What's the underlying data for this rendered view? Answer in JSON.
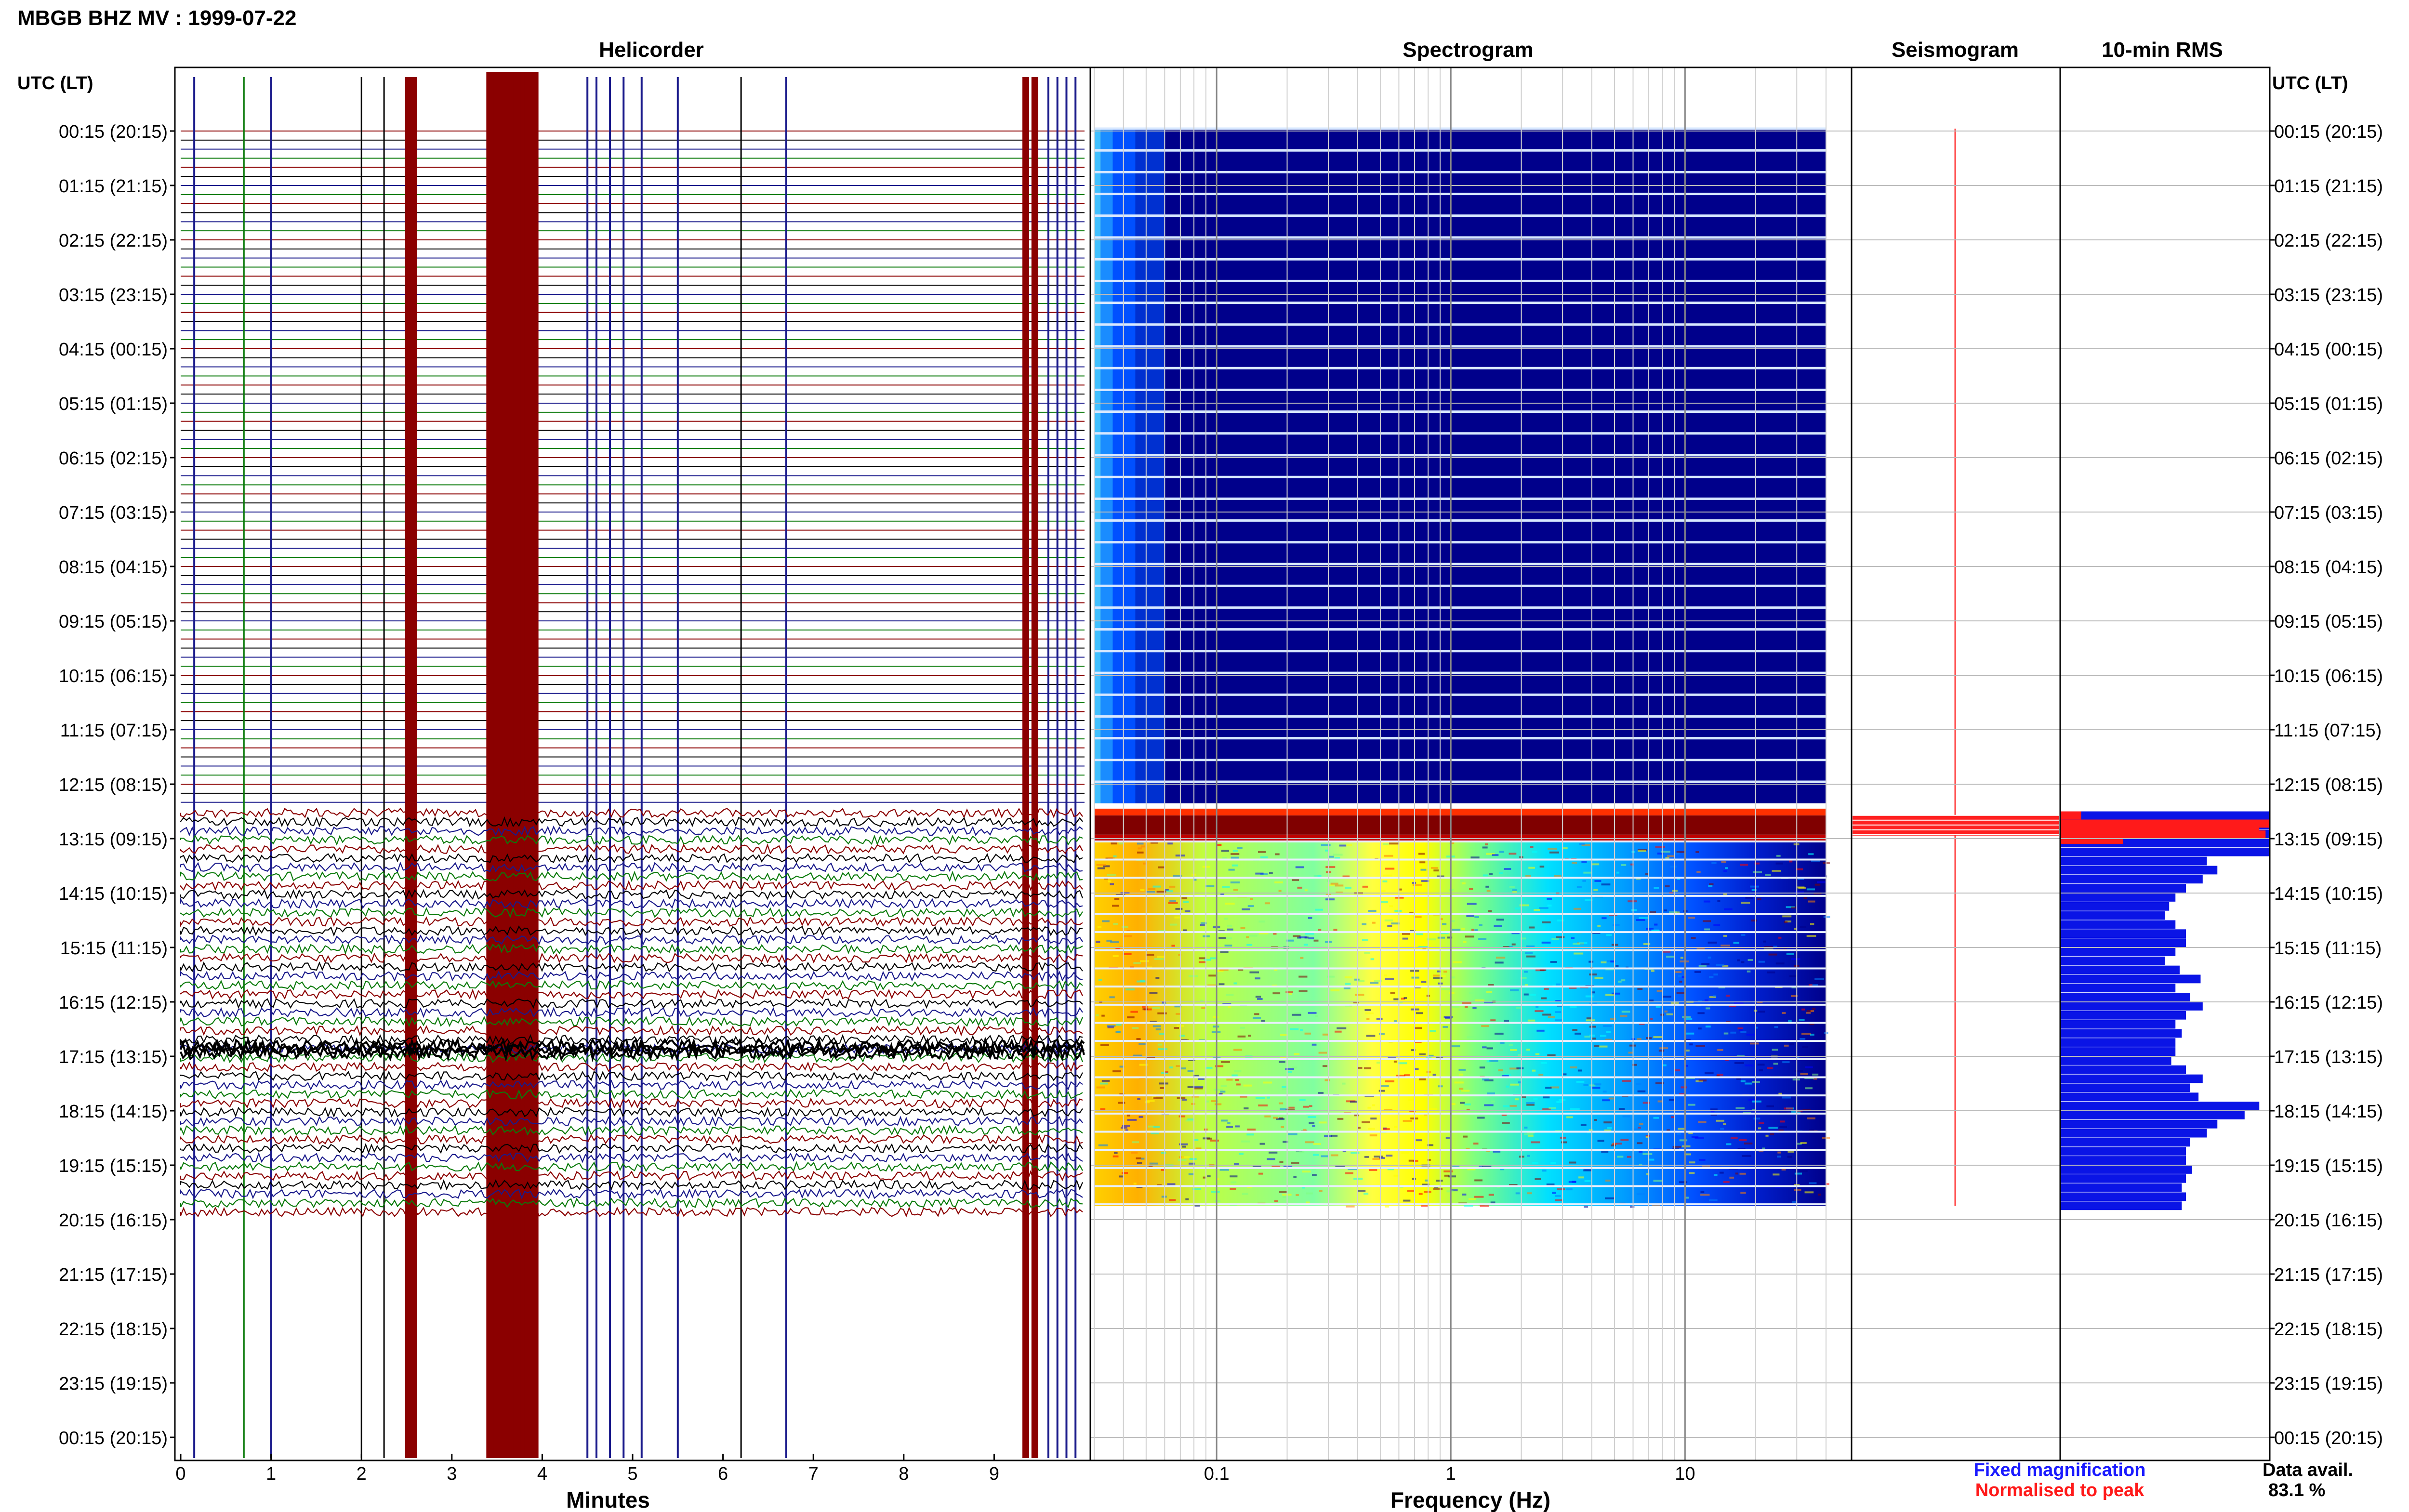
{
  "title": "MBGB BHZ MV : 1999-07-22",
  "panels": {
    "helicorder": "Helicorder",
    "spectrogram": "Spectrogram",
    "seismogram": "Seismogram",
    "rms": "10-min RMS"
  },
  "axis": {
    "left_header": "UTC (LT)",
    "right_header": "UTC (LT)",
    "x_minutes_label": "Minutes",
    "x_frequency_label": "Frequency (Hz)"
  },
  "legend": {
    "fixed": "Fixed magnification",
    "normalised": "Normalised to peak",
    "fixed_color": "#1a1aff",
    "normalised_color": "#ff1a1a"
  },
  "data_availability": {
    "label": "Data avail.",
    "value": "83.1 %"
  },
  "chart_data": [
    {
      "type": "line",
      "name": "helicorder",
      "title": "Helicorder",
      "xlabel": "Minutes",
      "xlim": [
        0,
        10
      ],
      "x_ticks": [
        "0",
        "1",
        "2",
        "3",
        "4",
        "5",
        "6",
        "7",
        "8",
        "9"
      ],
      "y_ticks_left": [
        "00:15 (20:15)",
        "01:15 (21:15)",
        "02:15 (22:15)",
        "03:15 (23:15)",
        "04:15 (00:15)",
        "05:15 (01:15)",
        "06:15 (02:15)",
        "07:15 (03:15)",
        "08:15 (04:15)",
        "09:15 (05:15)",
        "10:15 (06:15)",
        "11:15 (07:15)",
        "12:15 (08:15)",
        "13:15 (09:15)",
        "14:15 (10:15)",
        "15:15 (11:15)",
        "16:15 (12:15)",
        "17:15 (13:15)",
        "18:15 (14:15)",
        "19:15 (15:15)",
        "20:15 (16:15)",
        "21:15 (17:15)",
        "22:15 (18:15)",
        "23:15 (19:15)",
        "00:15 (20:15)"
      ],
      "trace_colors": [
        "#8b0000",
        "#000000",
        "#1a1a8b",
        "#0a7a0a"
      ],
      "data_start_hour": 12.6,
      "data_end_hour": 20.0,
      "spike_minutes_dark_red": [
        2.52,
        2.58,
        3.5,
        3.55,
        3.6,
        3.65,
        3.7,
        3.75,
        3.8,
        3.85,
        9.35,
        9.45
      ],
      "spike_minutes_blue": [
        0.15,
        1.0,
        4.5,
        4.6,
        4.75,
        4.9,
        5.1,
        5.5,
        6.7,
        9.6,
        9.7,
        9.8,
        9.9
      ]
    },
    {
      "type": "heatmap",
      "name": "spectrogram",
      "title": "Spectrogram",
      "xlabel": "Frequency (Hz)",
      "x_scale": "log",
      "xlim": [
        0.03,
        40
      ],
      "x_tick_labels": [
        "0.1",
        "1",
        "10"
      ],
      "x_tick_values": [
        0.1,
        1,
        10
      ],
      "colormap": [
        "#00008b",
        "#0000ff",
        "#0080ff",
        "#00ffff",
        "#80ff80",
        "#ffff00",
        "#ff8000",
        "#ff0000",
        "#800000"
      ],
      "quiet_until_hour": 12.6,
      "active_until_hour": 20.0,
      "peak_band_hz": [
        0.3,
        3
      ]
    },
    {
      "type": "line",
      "name": "seismogram",
      "title": "Seismogram",
      "burst_hour": 13.0
    },
    {
      "type": "bar",
      "name": "10-min RMS",
      "title": "10-min RMS",
      "orientation": "horizontal",
      "normalised_hours": [
        12.75,
        12.9,
        13.0,
        13.1,
        13.2
      ],
      "normalised_values": [
        0.1,
        1.0,
        0.95,
        0.98,
        0.3
      ],
      "fixed_start_hour": 12.75,
      "fixed_values": [
        1.0,
        1.0,
        1.0,
        1.0,
        1.0,
        0.7,
        0.75,
        0.68,
        0.6,
        0.55,
        0.52,
        0.5,
        0.55,
        0.6,
        0.6,
        0.55,
        0.5,
        0.57,
        0.67,
        0.55,
        0.62,
        0.68,
        0.6,
        0.55,
        0.58,
        0.55,
        0.55,
        0.53,
        0.6,
        0.68,
        0.62,
        0.66,
        0.95,
        0.88,
        0.75,
        0.7,
        0.62,
        0.6,
        0.6,
        0.63,
        0.6,
        0.58,
        0.6,
        0.58,
        0.6,
        0.6,
        0.62,
        0.6,
        0.65,
        0.66,
        0.6,
        0.6,
        0.62,
        0.7,
        0.66,
        0.6,
        0.62,
        0.7,
        0.68,
        0.6,
        0.6,
        0.64,
        0.7,
        0.6
      ]
    }
  ],
  "colors": {
    "frame": "#000000",
    "grid": "#b0b0b0",
    "spec_low": "#00008b"
  }
}
